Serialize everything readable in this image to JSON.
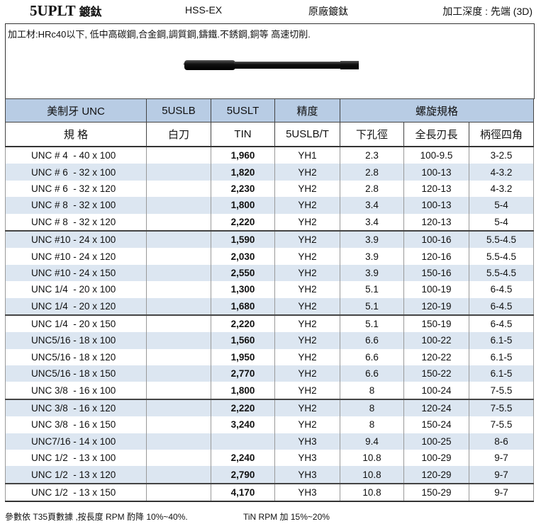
{
  "header": {
    "title": "5UPLT",
    "title_suffix": "鍍鈦",
    "material": "HSS-EX",
    "coating": "原廠鍍鈦",
    "depth": "加工深度 : 先端 (3D)"
  },
  "description": "加工材:HRc40以下, 低中高碳鋼,合金鋼,調質鋼,鑄鐵.不銹鋼,銅等 高速切削.",
  "table": {
    "header_top": [
      "美制牙 UNC",
      "5USLB",
      "5USLT",
      "精度",
      "螺旋規格"
    ],
    "header_sub": [
      "規 格",
      "白刀",
      "TIN",
      "5USLB/T",
      "下孔徑",
      "全長刃長",
      "柄徑四角"
    ],
    "rows": [
      [
        "UNC # 4  - 40 x 100",
        null,
        "1,960",
        "YH1",
        "2.3",
        "100-9.5",
        "3-2.5"
      ],
      [
        "UNC # 6  - 32 x 100",
        null,
        "1,820",
        "YH2",
        "2.8",
        "100-13",
        "4-3.2"
      ],
      [
        "UNC # 6  - 32 x 120",
        null,
        "2,230",
        "YH2",
        "2.8",
        "120-13",
        "4-3.2"
      ],
      [
        "UNC # 8  - 32 x 100",
        null,
        "1,800",
        "YH2",
        "3.4",
        "100-13",
        "5-4"
      ],
      [
        "UNC # 8  - 32 x 120",
        null,
        "2,220",
        "YH2",
        "3.4",
        "120-13",
        "5-4"
      ],
      [
        "UNC #10 - 24 x 100",
        null,
        "1,590",
        "YH2",
        "3.9",
        "100-16",
        "5.5-4.5"
      ],
      [
        "UNC #10 - 24 x 120",
        null,
        "2,030",
        "YH2",
        "3.9",
        "120-16",
        "5.5-4.5"
      ],
      [
        "UNC #10 - 24 x 150",
        null,
        "2,550",
        "YH2",
        "3.9",
        "150-16",
        "5.5-4.5"
      ],
      [
        "UNC 1/4  - 20 x 100",
        null,
        "1,300",
        "YH2",
        "5.1",
        "100-19",
        "6-4.5"
      ],
      [
        "UNC 1/4  - 20 x 120",
        null,
        "1,680",
        "YH2",
        "5.1",
        "120-19",
        "6-4.5"
      ],
      [
        "UNC 1/4  - 20 x 150",
        null,
        "2,220",
        "YH2",
        "5.1",
        "150-19",
        "6-4.5"
      ],
      [
        "UNC5/16 - 18 x 100",
        null,
        "1,560",
        "YH2",
        "6.6",
        "100-22",
        "6.1-5"
      ],
      [
        "UNC5/16 - 18 x 120",
        null,
        "1,950",
        "YH2",
        "6.6",
        "120-22",
        "6.1-5"
      ],
      [
        "UNC5/16 - 18 x 150",
        null,
        "2,770",
        "YH2",
        "6.6",
        "150-22",
        "6.1-5"
      ],
      [
        "UNC 3/8  - 16 x 100",
        null,
        "1,800",
        "YH2",
        "8",
        "100-24",
        "7-5.5"
      ],
      [
        "UNC 3/8  - 16 x 120",
        null,
        "2,220",
        "YH2",
        "8",
        "120-24",
        "7-5.5"
      ],
      [
        "UNC 3/8  - 16 x 150",
        null,
        "3,240",
        "YH2",
        "8",
        "150-24",
        "7-5.5"
      ],
      [
        "UNC7/16 - 14 x 100",
        null,
        null,
        "YH3",
        "9.4",
        "100-25",
        "8-6"
      ],
      [
        "UNC 1/2  - 13 x 100",
        null,
        "2,240",
        "YH3",
        "10.8",
        "100-29",
        "9-7"
      ],
      [
        "UNC 1/2  - 13 x 120",
        null,
        "2,790",
        "YH3",
        "10.8",
        "120-29",
        "9-7"
      ],
      [
        "UNC 1/2  - 13 x 150",
        null,
        "4,170",
        "YH3",
        "10.8",
        "150-29",
        "9-7"
      ]
    ]
  },
  "footer": {
    "note1": "參數依 T35頁數據 ,按長度 RPM 酌降 10%~40%.",
    "note2": "TiN RPM 加 15%~20%"
  }
}
